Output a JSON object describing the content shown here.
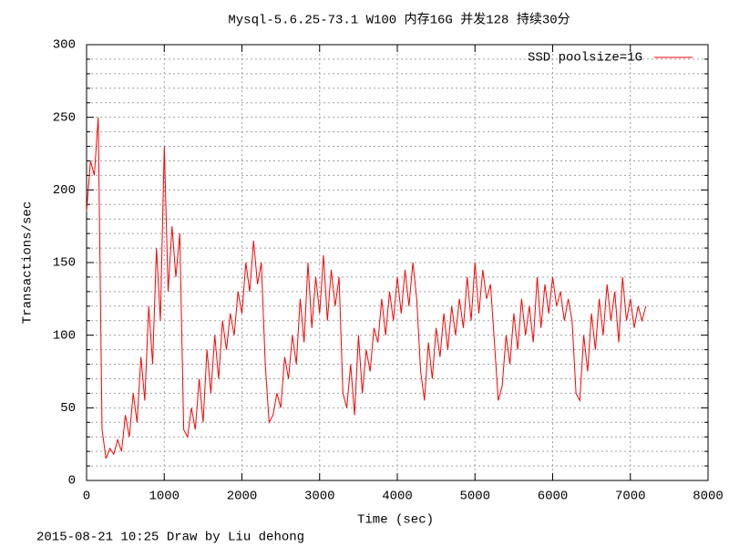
{
  "chart_data": {
    "type": "line",
    "title": "Mysql-5.6.25-73.1 W100 内存16G 并发128 持续30分",
    "xlabel": "Time (sec)",
    "ylabel": "Transactions/sec",
    "footer": "2015-08-21 10:25 Draw by Liu dehong",
    "xlim": [
      0,
      8000
    ],
    "xticks": [
      0,
      1000,
      2000,
      3000,
      4000,
      5000,
      6000,
      7000,
      8000
    ],
    "ylim": [
      0,
      300
    ],
    "yticks": [
      0,
      50,
      100,
      150,
      200,
      250,
      300
    ],
    "yminorticks": [
      10,
      20,
      30,
      40,
      60,
      70,
      80,
      90,
      110,
      120,
      130,
      140,
      160,
      170,
      180,
      190,
      210,
      220,
      230,
      240,
      260,
      270,
      280,
      290
    ],
    "grid": true,
    "legend": "top-right",
    "x": [
      0,
      50,
      100,
      150,
      200,
      250,
      300,
      350,
      400,
      450,
      500,
      550,
      600,
      650,
      700,
      750,
      800,
      850,
      900,
      950,
      1000,
      1050,
      1100,
      1150,
      1200,
      1250,
      1300,
      1350,
      1400,
      1450,
      1500,
      1550,
      1600,
      1650,
      1700,
      1750,
      1800,
      1850,
      1900,
      1950,
      2000,
      2050,
      2100,
      2150,
      2200,
      2250,
      2300,
      2350,
      2400,
      2450,
      2500,
      2550,
      2600,
      2650,
      2700,
      2750,
      2800,
      2850,
      2900,
      2950,
      3000,
      3050,
      3100,
      3150,
      3200,
      3250,
      3300,
      3350,
      3400,
      3450,
      3500,
      3550,
      3600,
      3650,
      3700,
      3750,
      3800,
      3850,
      3900,
      3950,
      4000,
      4050,
      4100,
      4150,
      4200,
      4250,
      4300,
      4350,
      4400,
      4450,
      4500,
      4550,
      4600,
      4650,
      4700,
      4750,
      4800,
      4850,
      4900,
      4950,
      5000,
      5050,
      5100,
      5150,
      5200,
      5250,
      5300,
      5350,
      5400,
      5450,
      5500,
      5550,
      5600,
      5650,
      5700,
      5750,
      5800,
      5850,
      5900,
      5950,
      6000,
      6050,
      6100,
      6150,
      6200,
      6250,
      6300,
      6350,
      6400,
      6450,
      6500,
      6550,
      6600,
      6650,
      6700,
      6750,
      6800,
      6850,
      6900,
      6950,
      7000,
      7050,
      7100,
      7150,
      7200
    ],
    "series": [
      {
        "name": "SSD poolsize=1G",
        "color": "#ff0000",
        "values": [
          185,
          220,
          210,
          250,
          35,
          15,
          22,
          18,
          28,
          20,
          45,
          30,
          60,
          40,
          85,
          55,
          120,
          80,
          160,
          110,
          230,
          130,
          175,
          140,
          170,
          35,
          30,
          50,
          35,
          70,
          40,
          90,
          60,
          100,
          70,
          110,
          90,
          115,
          100,
          130,
          115,
          150,
          130,
          165,
          135,
          150,
          80,
          40,
          45,
          60,
          50,
          85,
          70,
          100,
          80,
          125,
          95,
          150,
          105,
          140,
          115,
          155,
          110,
          145,
          120,
          140,
          60,
          50,
          80,
          45,
          100,
          60,
          90,
          75,
          105,
          95,
          125,
          100,
          130,
          110,
          140,
          115,
          145,
          120,
          150,
          125,
          75,
          55,
          95,
          70,
          105,
          85,
          115,
          90,
          120,
          100,
          125,
          105,
          140,
          110,
          150,
          115,
          145,
          125,
          135,
          95,
          55,
          65,
          100,
          80,
          115,
          90,
          125,
          100,
          120,
          95,
          140,
          105,
          135,
          115,
          140,
          120,
          130,
          110,
          125,
          110,
          60,
          55,
          100,
          75,
          115,
          90,
          125,
          100,
          135,
          110,
          130,
          95,
          140,
          110,
          125,
          105,
          120,
          110,
          120
        ]
      }
    ]
  }
}
